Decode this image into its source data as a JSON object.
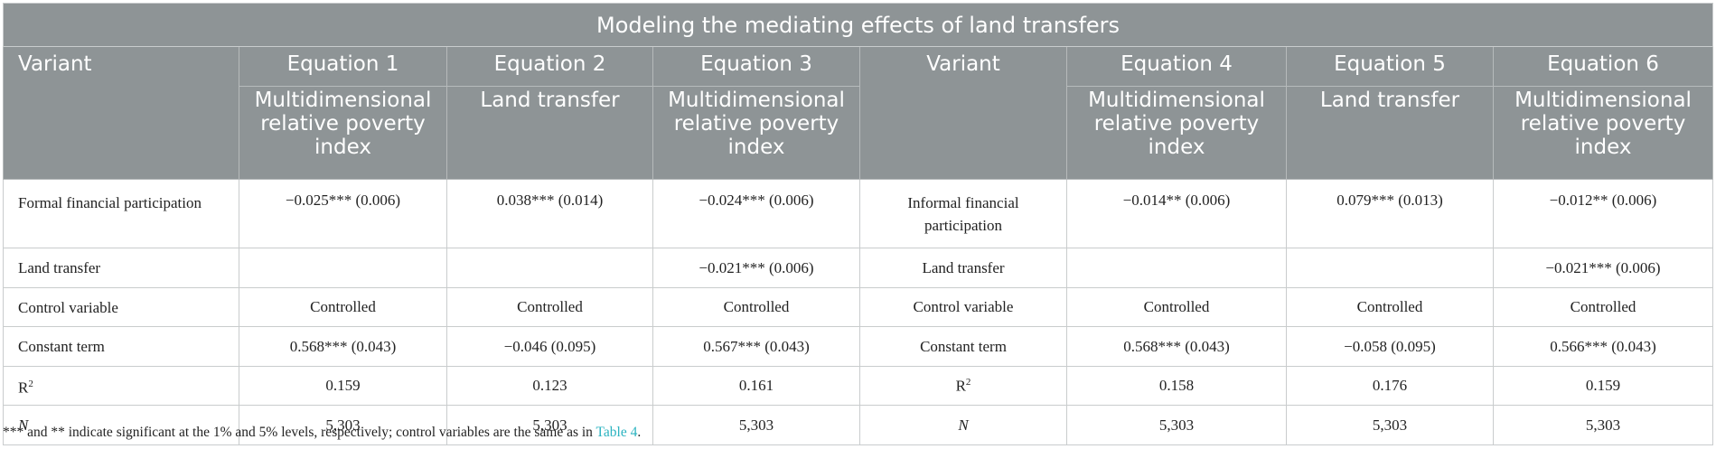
{
  "table": {
    "title": "Modeling the mediating effects of land transfers",
    "header": {
      "variant_left": "Variant",
      "variant_right": "Variant",
      "equations": [
        "Equation 1",
        "Equation 2",
        "Equation 3",
        "Equation 4",
        "Equation 5",
        "Equation 6"
      ],
      "dependents": [
        "Multidimensional relative poverty index",
        "Land transfer",
        "Multidimensional relative poverty index",
        "Multidimensional relative poverty index",
        "Land transfer",
        "Multidimensional relative poverty index"
      ]
    },
    "rows": [
      {
        "left_label": "Formal financial participation",
        "right_label": "Informal financial participation",
        "values": [
          "−0.025*** (0.006)",
          "0.038*** (0.014)",
          "−0.024*** (0.006)",
          "−0.014** (0.006)",
          "0.079*** (0.013)",
          "−0.012** (0.006)"
        ]
      },
      {
        "left_label": "Land transfer",
        "right_label": "Land transfer",
        "values": [
          "",
          "",
          "−0.021*** (0.006)",
          "",
          "",
          "−0.021*** (0.006)"
        ]
      },
      {
        "left_label": "Control variable",
        "right_label": "Control variable",
        "values": [
          "Controlled",
          "Controlled",
          "Controlled",
          "Controlled",
          "Controlled",
          "Controlled"
        ]
      },
      {
        "left_label": "Constant term",
        "right_label": "Constant term",
        "values": [
          "0.568*** (0.043)",
          "−0.046 (0.095)",
          "0.567*** (0.043)",
          "0.568*** (0.043)",
          "−0.058 (0.095)",
          "0.566*** (0.043)"
        ]
      },
      {
        "left_label": "R",
        "left_sup": "2",
        "right_label": "R",
        "right_sup": "2",
        "values": [
          "0.159",
          "0.123",
          "0.161",
          "0.158",
          "0.176",
          "0.159"
        ]
      },
      {
        "left_label": "N",
        "right_label": "N",
        "values": [
          "5,303",
          "5,303",
          "5,303",
          "5,303",
          "5,303",
          "5,303"
        ]
      }
    ]
  },
  "footnote": {
    "text": "*** and ** indicate significant at the 1% and 5% levels, respectively; control variables are the same as in ",
    "link": "Table 4",
    "end": "."
  }
}
